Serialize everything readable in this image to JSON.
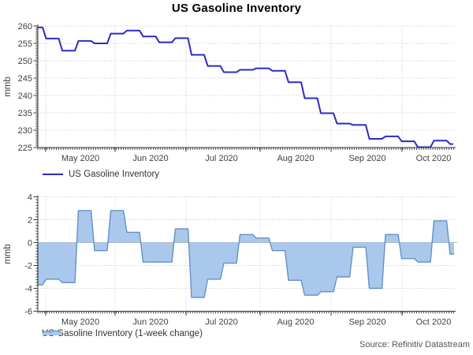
{
  "title": "US Gasoline Inventory",
  "source": "Source: Refinitiv Datastream",
  "colors": {
    "line": "#2b2bc4",
    "area_fill": "#aac8eb",
    "area_edge": "#6390c8",
    "grid": "#c9c9c9",
    "axis": "#3a3a3a",
    "zero_line": "#b0b0b0",
    "tick_text": "#404040"
  },
  "chart_data": [
    {
      "type": "line",
      "title": "US Gasoline Inventory",
      "ylabel": "mmb",
      "ylim": [
        225,
        260
      ],
      "yticks": [
        225,
        230,
        235,
        240,
        245,
        250,
        255,
        260
      ],
      "grid": true,
      "legend": "US Gasoline Inventory",
      "legend_position": "below-left",
      "x_tick_labels": [
        "May 2020",
        "Jun 2020",
        "Jul 2020",
        "Aug 2020",
        "Sep 2020",
        "Oct 2020"
      ],
      "x": [
        "2020-04-24",
        "2020-05-01",
        "2020-05-08",
        "2020-05-15",
        "2020-05-22",
        "2020-05-29",
        "2020-06-05",
        "2020-06-12",
        "2020-06-19",
        "2020-06-26",
        "2020-07-03",
        "2020-07-10",
        "2020-07-17",
        "2020-07-24",
        "2020-07-31",
        "2020-08-07",
        "2020-08-14",
        "2020-08-21",
        "2020-08-28",
        "2020-09-04",
        "2020-09-11",
        "2020-09-18",
        "2020-09-25",
        "2020-10-02",
        "2020-10-09",
        "2020-10-16",
        "2020-10-23"
      ],
      "values": [
        259.6,
        256.4,
        252.9,
        255.7,
        255.0,
        257.8,
        258.7,
        257.0,
        255.3,
        256.5,
        251.7,
        248.5,
        246.7,
        247.4,
        247.8,
        247.1,
        243.8,
        239.2,
        234.9,
        231.9,
        231.5,
        227.5,
        228.2,
        226.8,
        225.1,
        227.0,
        226.0
      ]
    },
    {
      "type": "area",
      "title": "US Gasoline Inventory (1-week change)",
      "ylabel": "mmb",
      "ylim": [
        -6,
        4
      ],
      "yticks": [
        -6,
        -4,
        -2,
        0,
        2,
        4
      ],
      "grid": true,
      "zero_line": true,
      "legend": "US Gasoline Inventory (1-week change)",
      "legend_position": "below-left",
      "x_tick_labels": [
        "May 2020",
        "Jun 2020",
        "Jul 2020",
        "Aug 2020",
        "Sep 2020",
        "Oct 2020"
      ],
      "x": [
        "2020-04-24",
        "2020-05-01",
        "2020-05-08",
        "2020-05-15",
        "2020-05-22",
        "2020-05-29",
        "2020-06-05",
        "2020-06-12",
        "2020-06-19",
        "2020-06-26",
        "2020-07-03",
        "2020-07-10",
        "2020-07-17",
        "2020-07-24",
        "2020-07-31",
        "2020-08-07",
        "2020-08-14",
        "2020-08-21",
        "2020-08-28",
        "2020-09-04",
        "2020-09-11",
        "2020-09-18",
        "2020-09-25",
        "2020-10-02",
        "2020-10-09",
        "2020-10-16",
        "2020-10-23"
      ],
      "values": [
        -3.7,
        -3.2,
        -3.5,
        2.8,
        -0.7,
        2.8,
        0.9,
        -1.7,
        -1.7,
        1.2,
        -4.8,
        -3.2,
        -1.8,
        0.7,
        0.4,
        -0.7,
        -3.3,
        -4.6,
        -4.3,
        -3.0,
        -0.4,
        -4.0,
        0.7,
        -1.4,
        -1.7,
        1.9,
        -1.0
      ]
    }
  ]
}
